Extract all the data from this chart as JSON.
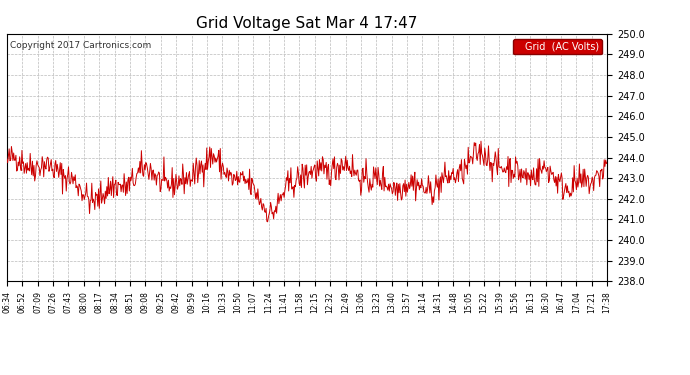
{
  "title": "Grid Voltage Sat Mar 4 17:47",
  "copyright": "Copyright 2017 Cartronics.com",
  "legend_label": "Grid  (AC Volts)",
  "ylim": [
    238.0,
    250.0
  ],
  "yticks": [
    238.0,
    239.0,
    240.0,
    241.0,
    242.0,
    243.0,
    244.0,
    245.0,
    246.0,
    247.0,
    248.0,
    249.0,
    250.0
  ],
  "line_color": "#cc0000",
  "background_color": "#ffffff",
  "grid_color": "#bbbbbb",
  "legend_bg": "#cc0000",
  "legend_text_color": "#ffffff",
  "x_tick_labels": [
    "06:34",
    "06:52",
    "07:09",
    "07:26",
    "07:43",
    "08:00",
    "08:17",
    "08:34",
    "08:51",
    "09:08",
    "09:25",
    "09:42",
    "09:59",
    "10:16",
    "10:33",
    "10:50",
    "11:07",
    "11:24",
    "11:41",
    "11:58",
    "12:15",
    "12:32",
    "12:49",
    "13:06",
    "13:23",
    "13:40",
    "13:57",
    "14:14",
    "14:31",
    "14:48",
    "15:05",
    "15:22",
    "15:39",
    "15:56",
    "16:13",
    "16:30",
    "16:47",
    "17:04",
    "17:21",
    "17:38"
  ],
  "seed": 42,
  "n_points": 800,
  "mean_voltage": 243.3,
  "noise_std": 0.35
}
